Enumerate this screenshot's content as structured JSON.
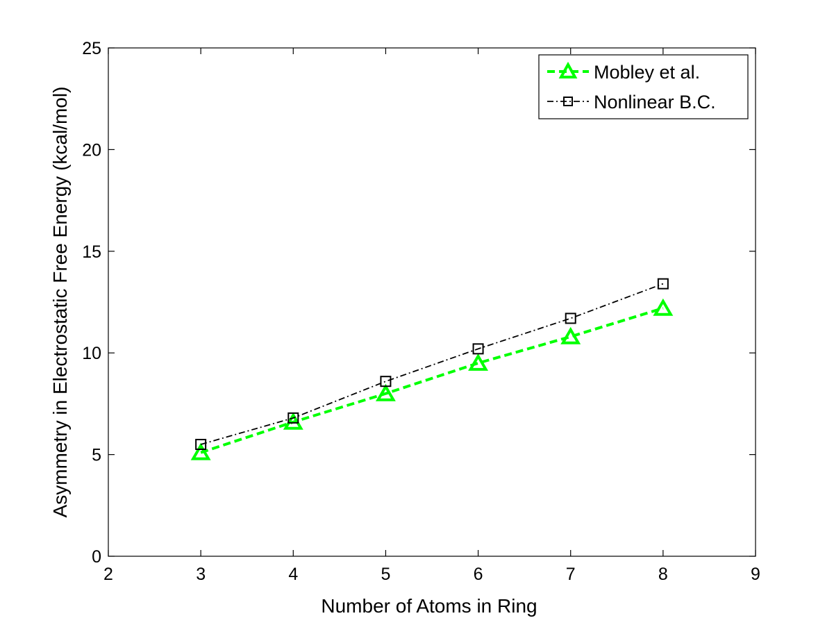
{
  "chart_data": {
    "type": "line",
    "xlabel": "Number of Atoms in Ring",
    "ylabel": "Asymmetry in Electrostatic Free Energy (kcal/mol)",
    "xlim": [
      2,
      9
    ],
    "ylim": [
      0,
      25
    ],
    "xticks": [
      2,
      3,
      4,
      5,
      6,
      7,
      8,
      9
    ],
    "yticks": [
      0,
      5,
      10,
      15,
      20,
      25
    ],
    "grid": false,
    "legend_position": "top-right",
    "series": [
      {
        "name": "Mobley et al.",
        "color": "#00ff00",
        "line_style": "dashed",
        "marker": "triangle",
        "x": [
          3,
          4,
          5,
          6,
          7,
          8
        ],
        "y": [
          5.1,
          6.6,
          8.0,
          9.5,
          10.8,
          12.2
        ]
      },
      {
        "name": "Nonlinear B.C.",
        "color": "#000000",
        "line_style": "dash-dot",
        "marker": "square",
        "x": [
          3,
          4,
          5,
          6,
          7,
          8
        ],
        "y": [
          5.5,
          6.8,
          8.6,
          10.2,
          11.7,
          13.4
        ]
      }
    ]
  }
}
